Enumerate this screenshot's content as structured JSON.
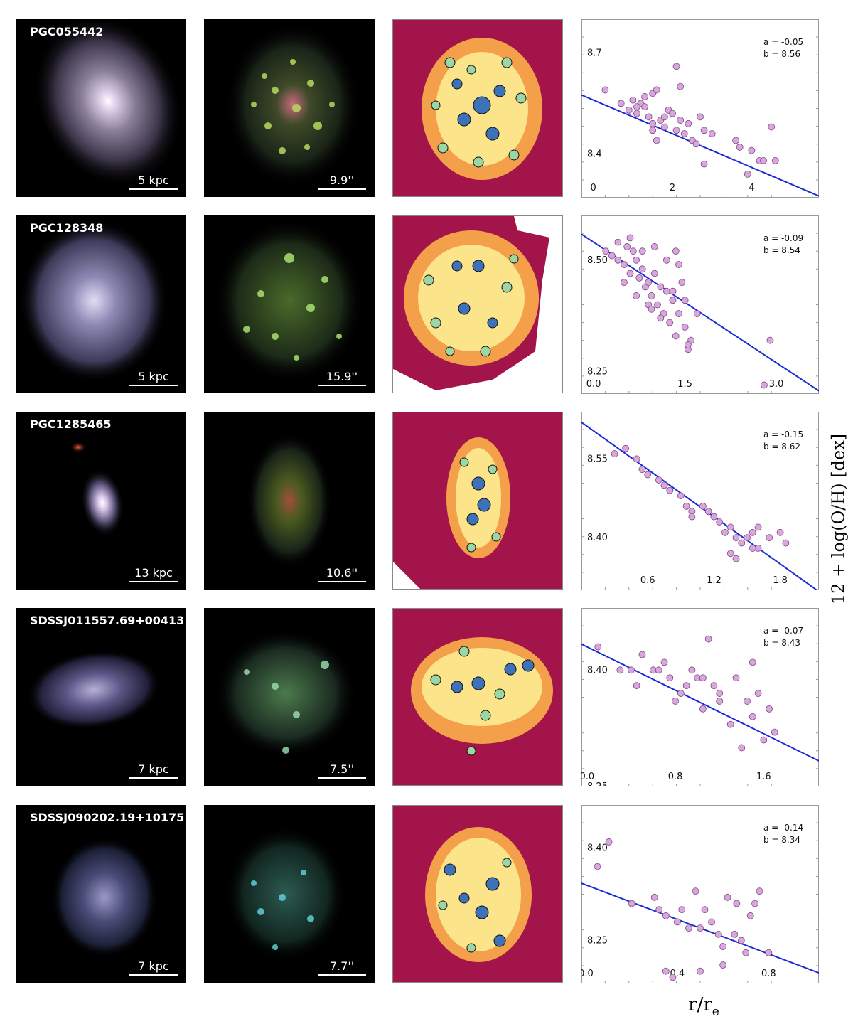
{
  "figure": {
    "ylabel": "12 + log(O/H) [dex]",
    "xlabel": "r/r",
    "xlabel_subscript": "e"
  },
  "colors": {
    "fit_line": "#1a2ad6",
    "points_fill": "#d9a6dd",
    "points_edge": "#7a4a80",
    "map_background": "#a3144a"
  },
  "rows": [
    {
      "name": "PGC055442",
      "scale_kpc": "5 kpc",
      "scale_arcsec": "9.9''"
    },
    {
      "name": "PGC128348",
      "scale_kpc": "5 kpc",
      "scale_arcsec": "15.9''"
    },
    {
      "name": "PGC1285465",
      "scale_kpc": "13 kpc",
      "scale_arcsec": "10.6''"
    },
    {
      "name": "SDSSJ011557.69+00413",
      "scale_kpc": "7 kpc",
      "scale_arcsec": "7.5''"
    },
    {
      "name": "SDSSJ090202.19+10175",
      "scale_kpc": "7 kpc",
      "scale_arcsec": "7.7''"
    }
  ],
  "chart_data": [
    {
      "type": "scatter",
      "a_label": "a = -0.05",
      "b_label": "b = 8.56",
      "slope": -0.05,
      "intercept": 8.56,
      "xlim": [
        -0.3,
        5.7
      ],
      "ylim": [
        8.27,
        8.8
      ],
      "xticks": [
        {
          "v": 0,
          "t": "0"
        },
        {
          "v": 2,
          "t": "2"
        },
        {
          "v": 4,
          "t": "4"
        }
      ],
      "yticks": [
        {
          "v": 8.7,
          "t": "8.7"
        },
        {
          "v": 8.4,
          "t": "8.4"
        }
      ],
      "x": [
        0.3,
        0.7,
        0.9,
        1.0,
        1.1,
        1.2,
        1.3,
        1.4,
        1.5,
        1.6,
        1.7,
        1.8,
        1.9,
        2.0,
        2.1,
        2.2,
        2.3,
        2.4,
        2.5,
        2.6,
        2.7,
        2.8,
        3.0,
        1.3,
        1.5,
        1.6,
        2.2,
        3.6,
        3.9,
        4.0,
        4.2,
        4.3,
        4.5,
        4.6,
        3.7,
        1.8,
        2.1,
        1.1,
        1.5,
        2.8
      ],
      "y": [
        8.59,
        8.55,
        8.53,
        8.56,
        8.52,
        8.55,
        8.57,
        8.51,
        8.58,
        8.59,
        8.5,
        8.48,
        8.53,
        8.52,
        8.47,
        8.5,
        8.46,
        8.49,
        8.44,
        8.43,
        8.51,
        8.47,
        8.46,
        8.54,
        8.49,
        8.44,
        8.6,
        8.44,
        8.34,
        8.41,
        8.38,
        8.38,
        8.48,
        8.38,
        8.42,
        8.51,
        8.66,
        8.54,
        8.47,
        8.37
      ]
    },
    {
      "type": "scatter",
      "a_label": "a = -0.09",
      "b_label": "b = 8.54",
      "slope": -0.09,
      "intercept": 8.54,
      "xlim": [
        -0.2,
        3.7
      ],
      "ylim": [
        8.2,
        8.6
      ],
      "xticks": [
        {
          "v": 0.0,
          "t": "0.0"
        },
        {
          "v": 1.5,
          "t": "1.5"
        },
        {
          "v": 3.0,
          "t": "3.0"
        }
      ],
      "yticks": [
        {
          "v": 8.5,
          "t": "8.50"
        },
        {
          "v": 8.25,
          "t": "8.25"
        }
      ],
      "x": [
        0.2,
        0.3,
        0.4,
        0.5,
        0.55,
        0.6,
        0.65,
        0.7,
        0.75,
        0.8,
        0.85,
        0.9,
        0.95,
        1.0,
        1.05,
        1.1,
        1.15,
        1.2,
        1.25,
        1.3,
        1.35,
        1.4,
        1.45,
        1.5,
        1.55,
        1.6,
        0.4,
        0.6,
        0.8,
        1.0,
        1.2,
        1.4,
        0.5,
        0.7,
        0.9,
        1.1,
        1.3,
        1.5,
        1.7,
        2.9,
        2.8,
        1.55,
        1.35,
        0.95
      ],
      "y": [
        8.52,
        8.51,
        8.5,
        8.49,
        8.53,
        8.47,
        8.52,
        8.5,
        8.46,
        8.48,
        8.44,
        8.45,
        8.42,
        8.47,
        8.4,
        8.44,
        8.38,
        8.43,
        8.36,
        8.41,
        8.33,
        8.38,
        8.45,
        8.35,
        8.3,
        8.32,
        8.54,
        8.55,
        8.52,
        8.53,
        8.5,
        8.49,
        8.45,
        8.42,
        8.4,
        8.37,
        8.43,
        8.41,
        8.38,
        8.32,
        8.22,
        8.31,
        8.52,
        8.39
      ]
    },
    {
      "type": "scatter",
      "a_label": "a = -0.15",
      "b_label": "b = 8.62",
      "slope": -0.15,
      "intercept": 8.62,
      "xlim": [
        0.0,
        2.15
      ],
      "ylim": [
        8.3,
        8.64
      ],
      "xticks": [
        {
          "v": 0.6,
          "t": "0.6"
        },
        {
          "v": 1.2,
          "t": "1.2"
        },
        {
          "v": 1.8,
          "t": "1.8"
        }
      ],
      "yticks": [
        {
          "v": 8.55,
          "t": "8.55"
        },
        {
          "v": 8.4,
          "t": "8.40"
        }
      ],
      "x": [
        0.3,
        0.4,
        0.5,
        0.6,
        0.7,
        0.8,
        0.9,
        1.0,
        1.1,
        1.2,
        1.25,
        1.3,
        1.35,
        1.4,
        1.45,
        1.5,
        1.55,
        1.6,
        1.7,
        1.8,
        1.85,
        0.55,
        0.75,
        0.95,
        1.15,
        1.35,
        1.55,
        1.0,
        1.4,
        1.6
      ],
      "y": [
        8.56,
        8.57,
        8.55,
        8.52,
        8.51,
        8.49,
        8.48,
        8.45,
        8.46,
        8.44,
        8.43,
        8.41,
        8.42,
        8.4,
        8.39,
        8.4,
        8.41,
        8.38,
        8.4,
        8.41,
        8.39,
        8.53,
        8.5,
        8.46,
        8.45,
        8.37,
        8.38,
        8.44,
        8.36,
        8.42
      ]
    },
    {
      "type": "scatter",
      "a_label": "a = -0.07",
      "b_label": "b = 8.43",
      "slope": -0.07,
      "intercept": 8.43,
      "xlim": [
        -0.05,
        2.1
      ],
      "ylim": [
        8.25,
        8.48
      ],
      "xticks": [
        {
          "v": 0.0,
          "t": "0.0"
        },
        {
          "v": 0.8,
          "t": "0.8"
        },
        {
          "v": 1.6,
          "t": "1.6"
        }
      ],
      "yticks": [
        {
          "v": 8.4,
          "t": "8.40"
        },
        {
          "v": 8.25,
          "t": "8.25"
        }
      ],
      "x": [
        0.1,
        0.3,
        0.45,
        0.5,
        0.6,
        0.7,
        0.75,
        0.8,
        0.85,
        0.9,
        0.95,
        1.0,
        1.05,
        1.1,
        1.15,
        1.2,
        1.3,
        1.35,
        1.4,
        1.45,
        1.5,
        1.55,
        1.6,
        1.65,
        1.7,
        0.4,
        0.65,
        1.05,
        1.2,
        1.5
      ],
      "y": [
        8.43,
        8.4,
        8.38,
        8.42,
        8.4,
        8.41,
        8.39,
        8.36,
        8.37,
        8.38,
        8.4,
        8.39,
        8.35,
        8.44,
        8.38,
        8.37,
        8.33,
        8.39,
        8.3,
        8.36,
        8.41,
        8.37,
        8.31,
        8.35,
        8.32,
        8.4,
        8.4,
        8.39,
        8.36,
        8.34
      ]
    },
    {
      "type": "scatter",
      "a_label": "a = -0.14",
      "b_label": "b = 8.34",
      "slope": -0.14,
      "intercept": 8.34,
      "xlim": [
        -0.02,
        1.02
      ],
      "ylim": [
        8.18,
        8.47
      ],
      "xticks": [
        {
          "v": 0.0,
          "t": "0.0"
        },
        {
          "v": 0.4,
          "t": "0.4"
        },
        {
          "v": 0.8,
          "t": "0.8"
        }
      ],
      "yticks": [
        {
          "v": 8.4,
          "t": "8.40"
        },
        {
          "v": 8.25,
          "t": "8.25"
        }
      ],
      "x": [
        0.05,
        0.1,
        0.2,
        0.3,
        0.32,
        0.35,
        0.4,
        0.42,
        0.45,
        0.48,
        0.5,
        0.52,
        0.55,
        0.58,
        0.6,
        0.62,
        0.65,
        0.68,
        0.7,
        0.72,
        0.74,
        0.76,
        0.8,
        0.35,
        0.38,
        0.5,
        0.6,
        0.66
      ],
      "y": [
        8.37,
        8.41,
        8.31,
        8.32,
        8.3,
        8.29,
        8.28,
        8.3,
        8.27,
        8.33,
        8.27,
        8.3,
        8.28,
        8.26,
        8.24,
        8.32,
        8.26,
        8.25,
        8.23,
        8.29,
        8.31,
        8.33,
        8.23,
        8.2,
        8.19,
        8.2,
        8.21,
        8.31
      ]
    }
  ]
}
